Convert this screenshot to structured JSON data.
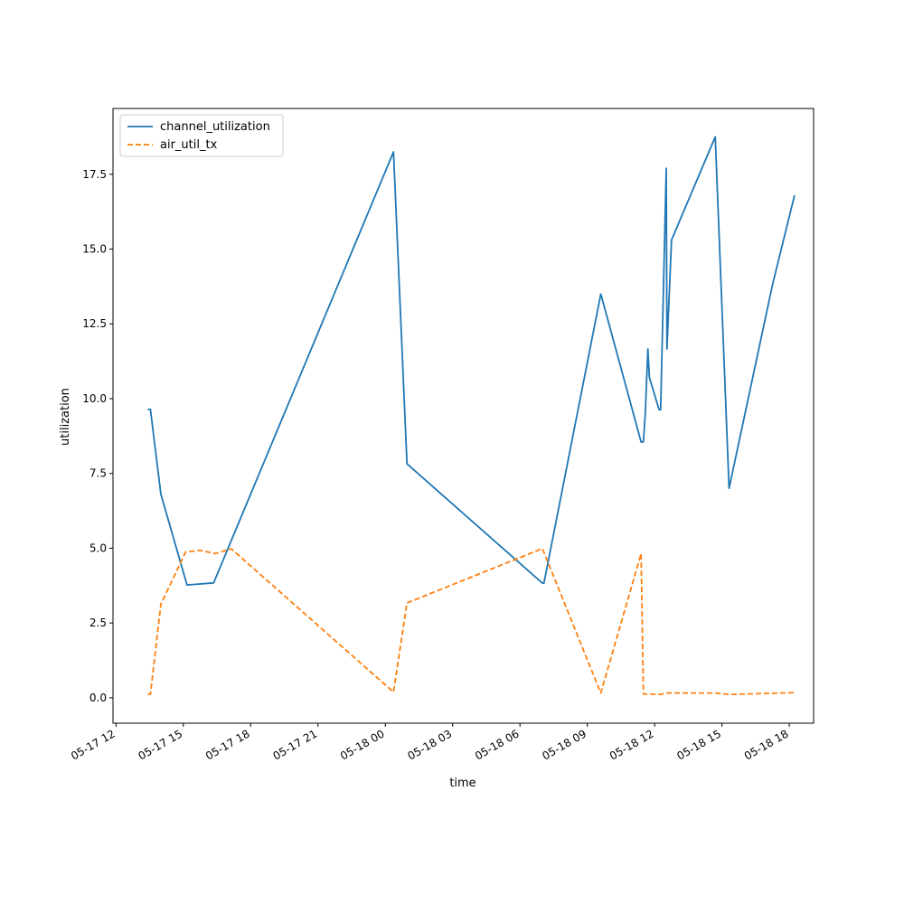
{
  "chart_data": {
    "type": "line",
    "title": "",
    "xlabel": "time",
    "ylabel": "utilization",
    "x_is_time": true,
    "xlim": [
      "2025-05-17T11:52",
      "2025-05-18T19:05"
    ],
    "ylim": [
      -0.85,
      19.7
    ],
    "x_ticks": [
      {
        "value": "2025-05-17T12:00",
        "label": "05-17 12"
      },
      {
        "value": "2025-05-17T15:00",
        "label": "05-17 15"
      },
      {
        "value": "2025-05-17T18:00",
        "label": "05-17 18"
      },
      {
        "value": "2025-05-17T21:00",
        "label": "05-17 21"
      },
      {
        "value": "2025-05-18T00:00",
        "label": "05-18 00"
      },
      {
        "value": "2025-05-18T03:00",
        "label": "05-18 03"
      },
      {
        "value": "2025-05-18T06:00",
        "label": "05-18 06"
      },
      {
        "value": "2025-05-18T09:00",
        "label": "05-18 09"
      },
      {
        "value": "2025-05-18T12:00",
        "label": "05-18 12"
      },
      {
        "value": "2025-05-18T15:00",
        "label": "05-18 15"
      },
      {
        "value": "2025-05-18T18:00",
        "label": "05-18 18"
      }
    ],
    "y_ticks": [
      {
        "value": 0.0,
        "label": "0.0"
      },
      {
        "value": 2.5,
        "label": "2.5"
      },
      {
        "value": 5.0,
        "label": "5.0"
      },
      {
        "value": 7.5,
        "label": "7.5"
      },
      {
        "value": 10.0,
        "label": "10.0"
      },
      {
        "value": 12.5,
        "label": "12.5"
      },
      {
        "value": 15.0,
        "label": "15.0"
      },
      {
        "value": 17.5,
        "label": "17.5"
      }
    ],
    "grid": false,
    "legend_position": "top-left",
    "series": [
      {
        "name": "channel_utilization",
        "color": "#1f77b4",
        "dash": "solid",
        "points": [
          [
            "2025-05-17T13:25",
            9.64
          ],
          [
            "2025-05-17T13:32",
            9.64
          ],
          [
            "2025-05-17T14:00",
            6.8
          ],
          [
            "2025-05-17T15:10",
            3.77
          ],
          [
            "2025-05-17T16:21",
            3.84
          ],
          [
            "2025-05-18T00:22",
            18.25
          ],
          [
            "2025-05-18T00:58",
            7.82
          ],
          [
            "2025-05-18T07:00",
            3.83
          ],
          [
            "2025-05-18T07:04",
            3.83
          ],
          [
            "2025-05-18T09:36",
            13.5
          ],
          [
            "2025-05-18T11:24",
            8.55
          ],
          [
            "2025-05-18T11:30",
            8.55
          ],
          [
            "2025-05-18T11:35",
            9.5
          ],
          [
            "2025-05-18T11:42",
            11.66
          ],
          [
            "2025-05-18T11:46",
            10.7
          ],
          [
            "2025-05-18T12:12",
            9.63
          ],
          [
            "2025-05-18T12:16",
            9.63
          ],
          [
            "2025-05-18T12:31",
            17.7
          ],
          [
            "2025-05-18T12:33",
            11.66
          ],
          [
            "2025-05-18T12:45",
            15.3
          ],
          [
            "2025-05-18T14:42",
            18.75
          ],
          [
            "2025-05-18T15:19",
            7.0
          ],
          [
            "2025-05-18T17:15",
            13.8
          ],
          [
            "2025-05-18T18:14",
            16.8
          ]
        ]
      },
      {
        "name": "air_util_tx",
        "color": "#ff7f0e",
        "dash": "dashed",
        "points": [
          [
            "2025-05-17T13:25",
            0.12
          ],
          [
            "2025-05-17T13:32",
            0.12
          ],
          [
            "2025-05-17T14:00",
            3.13
          ],
          [
            "2025-05-17T15:06",
            4.87
          ],
          [
            "2025-05-17T15:45",
            4.93
          ],
          [
            "2025-05-17T16:25",
            4.82
          ],
          [
            "2025-05-17T17:08",
            4.98
          ],
          [
            "2025-05-18T00:22",
            0.19
          ],
          [
            "2025-05-18T00:58",
            3.17
          ],
          [
            "2025-05-18T07:00",
            4.99
          ],
          [
            "2025-05-18T09:36",
            0.16
          ],
          [
            "2025-05-18T11:24",
            4.82
          ],
          [
            "2025-05-18T11:30",
            0.13
          ],
          [
            "2025-05-18T12:16",
            0.11
          ],
          [
            "2025-05-18T12:33",
            0.16
          ],
          [
            "2025-05-18T14:42",
            0.16
          ],
          [
            "2025-05-18T15:19",
            0.11
          ],
          [
            "2025-05-18T18:14",
            0.17
          ]
        ]
      }
    ]
  }
}
